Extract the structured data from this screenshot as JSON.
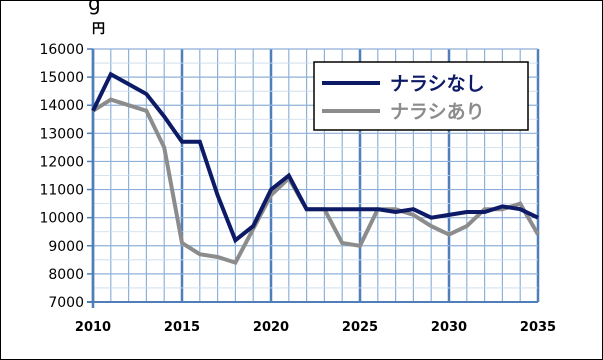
{
  "top_text": "g",
  "chart_data": {
    "type": "line",
    "title": "",
    "xlabel": "",
    "ylabel": "円",
    "xlim": [
      2010,
      2035
    ],
    "ylim": [
      7000,
      16000
    ],
    "grid": true,
    "legend_position": "top-right",
    "x_ticks": [
      2010,
      2015,
      2020,
      2025,
      2030,
      2035
    ],
    "y_ticks": [
      7000,
      8000,
      9000,
      10000,
      11000,
      12000,
      13000,
      14000,
      15000,
      16000
    ],
    "series": [
      {
        "name": "ナラシなし",
        "color": "#0d1a66",
        "x": [
          2010,
          2011,
          2012,
          2013,
          2014,
          2015,
          2016,
          2017,
          2018,
          2019,
          2020,
          2021,
          2022,
          2023,
          2024,
          2025,
          2026,
          2027,
          2028,
          2029,
          2030,
          2031,
          2032,
          2033,
          2034,
          2035
        ],
        "values": [
          13800,
          15100,
          14750,
          14400,
          13600,
          12700,
          12700,
          10800,
          9200,
          9700,
          11000,
          11500,
          10300,
          10300,
          10300,
          10300,
          10300,
          10200,
          10300,
          10000,
          10100,
          10200,
          10200,
          10400,
          10300,
          10000
        ]
      },
      {
        "name": "ナラシあり",
        "color": "#8c8c8c",
        "x": [
          2010,
          2011,
          2012,
          2013,
          2014,
          2015,
          2016,
          2017,
          2018,
          2019,
          2020,
          2021,
          2022,
          2023,
          2024,
          2025,
          2026,
          2027,
          2028,
          2029,
          2030,
          2031,
          2032,
          2033,
          2034,
          2035
        ],
        "values": [
          13800,
          14200,
          14000,
          13800,
          12500,
          9100,
          8700,
          8600,
          8400,
          9600,
          10800,
          11400,
          10300,
          10300,
          9100,
          9000,
          10300,
          10300,
          10100,
          9700,
          9400,
          9700,
          10300,
          10300,
          10500,
          9400
        ]
      }
    ]
  }
}
